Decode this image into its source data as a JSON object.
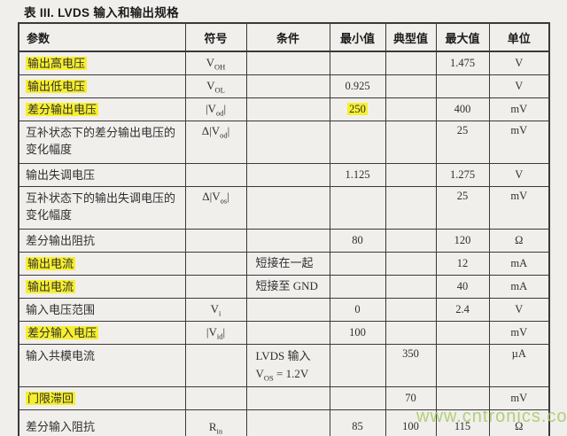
{
  "title": "表 III. LVDS 输入和输出规格",
  "watermark": "www.cntronics.com",
  "colors": {
    "highlight": "#f7ef2e",
    "watermark_green": "#a4c966",
    "border": "#3a3a3a",
    "background": "#f1efec"
  },
  "table": {
    "headers": [
      "参数",
      "符号",
      "条件",
      "最小值",
      "典型值",
      "最大值",
      "单位"
    ],
    "rows": [
      {
        "param": "输出高电压",
        "param_hl": true,
        "sym": {
          "pre": "V",
          "sub": "OH",
          "post": ""
        },
        "max": "1.475",
        "unit": "V"
      },
      {
        "param": "输出低电压",
        "param_hl": true,
        "sym": {
          "pre": "V",
          "sub": "OL",
          "post": ""
        },
        "min": "0.925",
        "unit": "V"
      },
      {
        "param": "差分输出电压",
        "param_hl": true,
        "sym": {
          "pre": "|V",
          "sub": "od",
          "post": "|"
        },
        "min": "250",
        "min_hl": true,
        "max": "400",
        "unit": "mV"
      },
      {
        "param": "互补状态下的差分输出电压的变化幅度",
        "sym": {
          "pre": "Δ|V",
          "sub": "od",
          "post": "|"
        },
        "max": "25",
        "unit": "mV"
      },
      {
        "param": "输出失调电压",
        "min": "1.125",
        "max": "1.275",
        "unit": "V"
      },
      {
        "param": "互补状态下的输出失调电压的变化幅度",
        "sym": {
          "pre": "Δ|V",
          "sub": "os",
          "post": "|"
        },
        "max": "25",
        "unit": "mV"
      },
      {
        "param": "差分输出阻抗",
        "min": "80",
        "max": "120",
        "unit": "Ω"
      },
      {
        "param": "输出电流",
        "param_hl": true,
        "cond": [
          {
            "text": "短接在一起"
          }
        ],
        "max": "12",
        "unit": "mA"
      },
      {
        "param": "输出电流",
        "param_hl": true,
        "cond": [
          {
            "text": "短接至 GND"
          }
        ],
        "max": "40",
        "unit": "mA"
      },
      {
        "param": "输入电压范围",
        "sym": {
          "pre": "V",
          "sub": "i",
          "post": ""
        },
        "min": "0",
        "max": "2.4",
        "unit": "V"
      },
      {
        "param": "差分输入电压",
        "param_hl": true,
        "sym": {
          "pre": "|V",
          "sub": "id",
          "post": "|"
        },
        "min": "100",
        "unit": "mV"
      },
      {
        "param": "输入共模电流",
        "cond": [
          {
            "text": "LVDS 输入"
          },
          {
            "pre": "V",
            "sub": "OS",
            "post": " = 1.2V"
          }
        ],
        "typ": "350",
        "unit": "µA"
      },
      {
        "param": "门限滞回",
        "param_hl": true,
        "typ": "70",
        "unit": "mV"
      },
      {
        "param": "差分输入阻抗",
        "sym": {
          "pre": "R",
          "sub": "in",
          "post": ""
        },
        "min": "85",
        "typ": "100",
        "max": "115",
        "unit": "Ω"
      }
    ]
  }
}
